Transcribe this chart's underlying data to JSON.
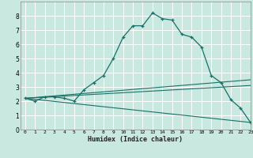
{
  "title": "",
  "xlabel": "Humidex (Indice chaleur)",
  "bg_color": "#c8e8e0",
  "grid_color": "#ffffff",
  "line_color": "#1a7068",
  "xlim": [
    -0.5,
    23
  ],
  "ylim": [
    0,
    9
  ],
  "xticks": [
    0,
    1,
    2,
    3,
    4,
    5,
    6,
    7,
    8,
    9,
    10,
    11,
    12,
    13,
    14,
    15,
    16,
    17,
    18,
    19,
    20,
    21,
    22,
    23
  ],
  "yticks": [
    0,
    1,
    2,
    3,
    4,
    5,
    6,
    7,
    8
  ],
  "series1_x": [
    0,
    1,
    2,
    3,
    4,
    5,
    6,
    7,
    8,
    9,
    10,
    11,
    12,
    13,
    14,
    15,
    16,
    17,
    18,
    19,
    20,
    21,
    22,
    23
  ],
  "series1_y": [
    2.2,
    2.0,
    2.3,
    2.3,
    2.2,
    2.0,
    2.8,
    3.3,
    3.8,
    5.0,
    6.5,
    7.3,
    7.3,
    8.2,
    7.8,
    7.7,
    6.7,
    6.5,
    5.8,
    3.8,
    3.3,
    2.1,
    1.5,
    0.5
  ],
  "series2_x": [
    0,
    23
  ],
  "series2_y": [
    2.2,
    3.5
  ],
  "series3_x": [
    0,
    23
  ],
  "series3_y": [
    2.2,
    3.1
  ],
  "series4_x": [
    0,
    23
  ],
  "series4_y": [
    2.2,
    0.5
  ]
}
